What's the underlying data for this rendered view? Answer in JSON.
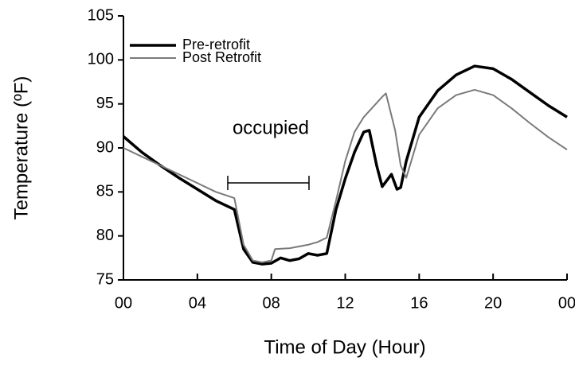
{
  "chart_data": {
    "type": "line",
    "xlabel": "Time of Day (Hour)",
    "ylabel": "Temperature (ºF)",
    "annotation": "occupied",
    "xlim": [
      0,
      24
    ],
    "xticks": [
      {
        "value": 0,
        "label": "00"
      },
      {
        "value": 4,
        "label": "04"
      },
      {
        "value": 8,
        "label": "08"
      },
      12,
      16,
      20,
      {
        "value": 24,
        "label": "00"
      }
    ],
    "ylim": [
      75,
      105
    ],
    "yticks": [
      75,
      80,
      85,
      90,
      95,
      100,
      105
    ],
    "legend": "top-left",
    "series": [
      {
        "name": "Pre-retrofit",
        "color": "#000000",
        "width": 3.5,
        "x": [
          0,
          1,
          2,
          3,
          4,
          5,
          6,
          6.5,
          7,
          7.5,
          8,
          8.5,
          9,
          9.5,
          10,
          10.5,
          11,
          11.5,
          12,
          12.5,
          13,
          13.3,
          13.7,
          14,
          14.5,
          14.8,
          15,
          15.3,
          16,
          17,
          18,
          19,
          20,
          21,
          22,
          23,
          24
        ],
        "values": [
          91.3,
          89.5,
          88.0,
          86.6,
          85.3,
          84.0,
          83.0,
          78.5,
          77.0,
          76.8,
          76.9,
          77.5,
          77.2,
          77.4,
          78.0,
          77.8,
          78.0,
          83.0,
          86.5,
          89.5,
          91.8,
          92.0,
          88.0,
          85.6,
          87.0,
          85.3,
          85.5,
          88.5,
          93.5,
          96.5,
          98.3,
          99.3,
          99.0,
          97.8,
          96.3,
          94.8,
          93.5
        ]
      },
      {
        "name": "Post Retrofit",
        "color": "#7a7a7a",
        "width": 2,
        "x": [
          0,
          1,
          2,
          3,
          4,
          5,
          6,
          6.5,
          7,
          7.5,
          8,
          8.2,
          9,
          10,
          10.5,
          11,
          11.5,
          12,
          12.5,
          13,
          14,
          14.2,
          14.7,
          15,
          15.3,
          16,
          17,
          18,
          19,
          20,
          21,
          22,
          23,
          24
        ],
        "values": [
          90.0,
          89.0,
          88.0,
          87.0,
          86.0,
          85.0,
          84.3,
          79.0,
          77.2,
          77.0,
          77.2,
          78.5,
          78.6,
          79.0,
          79.3,
          79.8,
          84.0,
          88.5,
          91.8,
          93.5,
          95.8,
          96.2,
          92.0,
          88.0,
          86.6,
          91.5,
          94.5,
          96.0,
          96.6,
          96.0,
          94.5,
          92.8,
          91.2,
          89.8
        ]
      }
    ]
  }
}
